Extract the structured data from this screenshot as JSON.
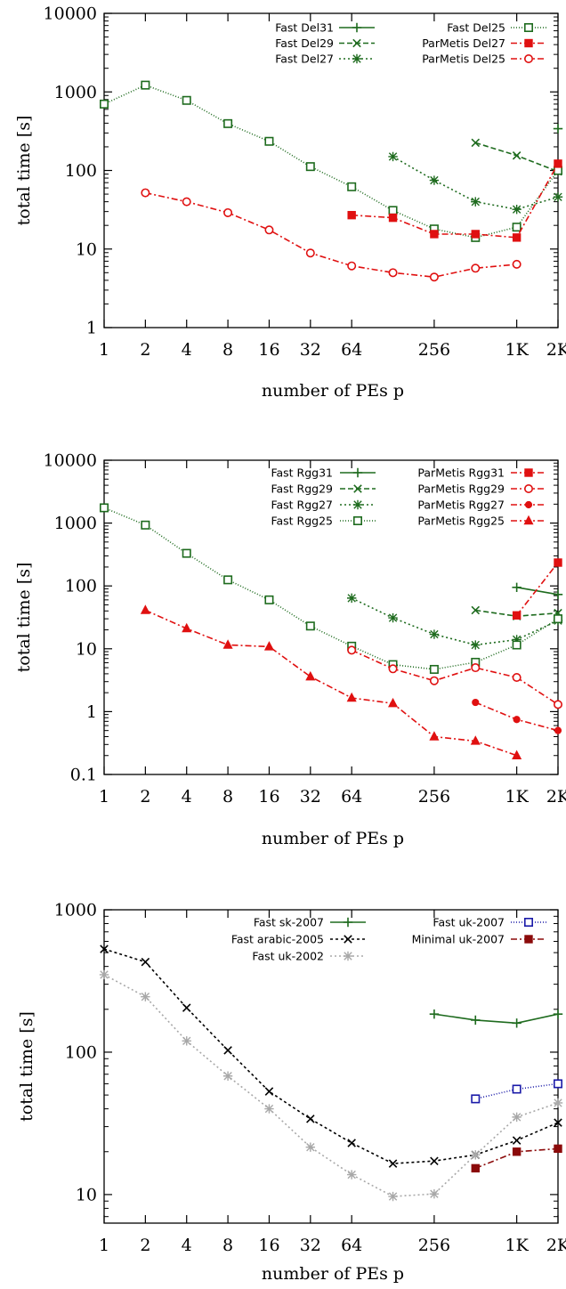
{
  "chart_data": [
    {
      "type": "line",
      "xlabel": "number of PEs p",
      "ylabel": "total time [s]",
      "x_scale": "log2",
      "y_scale": "log10",
      "xlim": [
        1,
        2048
      ],
      "ylim": [
        1,
        10000
      ],
      "x_ticks": [
        1,
        2,
        4,
        8,
        16,
        32,
        64,
        256,
        1024,
        2048
      ],
      "x_tick_labels": [
        "1",
        "2",
        "4",
        "8",
        "16",
        "32",
        "64",
        "256",
        "1K",
        "2K"
      ],
      "y_ticks": [
        1,
        10,
        100,
        1000,
        10000
      ],
      "y_tick_labels": [
        "1",
        "10",
        "100",
        "1000",
        "10000"
      ],
      "grid": false,
      "legend_position": "top-right",
      "series": [
        {
          "name": "Fast Del31",
          "color": "#1e6b1e",
          "marker": "plus",
          "dash": "",
          "x": [
            2048
          ],
          "y": [
            340
          ]
        },
        {
          "name": "Fast Del29",
          "color": "#1e6b1e",
          "marker": "x",
          "dash": "6,3",
          "x": [
            512,
            1024,
            2048
          ],
          "y": [
            225,
            155,
            97
          ]
        },
        {
          "name": "Fast Del27",
          "color": "#1e6b1e",
          "marker": "star",
          "dash": "2,3",
          "x": [
            128,
            256,
            512,
            1024,
            2048
          ],
          "y": [
            150,
            75,
            40,
            32,
            46
          ]
        },
        {
          "name": "Fast Del25",
          "color": "#1e6b1e",
          "marker": "square",
          "dash": "1,2",
          "x": [
            1,
            2,
            4,
            8,
            16,
            32,
            64,
            128,
            256,
            512,
            1024,
            2048
          ],
          "y": [
            700,
            1220,
            780,
            395,
            235,
            112,
            62,
            31,
            18,
            14,
            19,
            100
          ]
        },
        {
          "name": "ParMetis Del27",
          "color": "#e01010",
          "marker": "filled-square",
          "dash": "7,3,2,3",
          "x": [
            64,
            128,
            256,
            512,
            1024,
            2048
          ],
          "y": [
            27,
            25,
            15.5,
            15.5,
            14,
            122
          ]
        },
        {
          "name": "ParMetis Del25",
          "color": "#e01010",
          "marker": "circle",
          "dash": "7,3,2,3",
          "x": [
            2,
            4,
            8,
            16,
            32,
            64,
            128,
            256,
            512,
            1024
          ],
          "y": [
            52,
            40,
            29,
            17.5,
            8.9,
            6.1,
            5,
            4.4,
            5.7,
            6.4
          ]
        }
      ]
    },
    {
      "type": "line",
      "xlabel": "number of PEs p",
      "ylabel": "total time [s]",
      "x_scale": "log2",
      "y_scale": "log10",
      "xlim": [
        1,
        2048
      ],
      "ylim": [
        0.1,
        10000
      ],
      "x_ticks": [
        1,
        2,
        4,
        8,
        16,
        32,
        64,
        256,
        1024,
        2048
      ],
      "x_tick_labels": [
        "1",
        "2",
        "4",
        "8",
        "16",
        "32",
        "64",
        "256",
        "1K",
        "2K"
      ],
      "y_ticks": [
        0.1,
        1,
        10,
        100,
        1000,
        10000
      ],
      "y_tick_labels": [
        "0.1",
        "1",
        "10",
        "100",
        "1000",
        "10000"
      ],
      "grid": false,
      "legend_position": "top-right",
      "series": [
        {
          "name": "Fast Rgg31",
          "color": "#1e6b1e",
          "marker": "plus",
          "dash": "",
          "x": [
            1024,
            2048
          ],
          "y": [
            95,
            73
          ]
        },
        {
          "name": "Fast Rgg29",
          "color": "#1e6b1e",
          "marker": "x",
          "dash": "6,3",
          "x": [
            512,
            1024,
            2048
          ],
          "y": [
            41,
            33,
            37
          ]
        },
        {
          "name": "Fast Rgg27",
          "color": "#1e6b1e",
          "marker": "star",
          "dash": "2,3",
          "x": [
            64,
            128,
            256,
            512,
            1024,
            2048
          ],
          "y": [
            64,
            31,
            17,
            11.5,
            14,
            28
          ]
        },
        {
          "name": "Fast Rgg25",
          "color": "#1e6b1e",
          "marker": "square",
          "dash": "1,2",
          "x": [
            1,
            2,
            4,
            8,
            16,
            32,
            64,
            128,
            256,
            512,
            1024,
            2048
          ],
          "y": [
            1750,
            930,
            330,
            125,
            60,
            23,
            11,
            5.6,
            4.7,
            6.1,
            11.5,
            30
          ]
        },
        {
          "name": "ParMetis Rgg31",
          "color": "#e01010",
          "marker": "filled-square",
          "dash": "7,3,2,3",
          "x": [
            1024,
            2048
          ],
          "y": [
            34,
            235
          ]
        },
        {
          "name": "ParMetis Rgg29",
          "color": "#e01010",
          "marker": "circle",
          "dash": "7,3,2,3",
          "x": [
            64,
            128,
            256,
            512,
            1024,
            2048
          ],
          "y": [
            9.5,
            4.8,
            3.1,
            5,
            3.5,
            1.3
          ]
        },
        {
          "name": "ParMetis Rgg27",
          "color": "#e01010",
          "marker": "filled-circle",
          "dash": "7,3,2,3",
          "x": [
            512,
            1024,
            2048
          ],
          "y": [
            1.4,
            0.75,
            0.5
          ]
        },
        {
          "name": "ParMetis Rgg25",
          "color": "#e01010",
          "marker": "triangle",
          "dash": "7,3,2,3",
          "x": [
            2,
            4,
            8,
            16,
            32,
            64,
            128,
            256,
            512,
            1024
          ],
          "y": [
            41,
            21,
            11.5,
            10.8,
            3.6,
            1.65,
            1.35,
            0.4,
            0.34,
            0.2
          ]
        }
      ]
    },
    {
      "type": "line",
      "xlabel": "number of PEs p",
      "ylabel": "total time [s]",
      "x_scale": "log2",
      "y_scale": "log10",
      "xlim": [
        1,
        2048
      ],
      "ylim": [
        6.3,
        1000
      ],
      "x_ticks": [
        1,
        2,
        4,
        8,
        16,
        32,
        64,
        256,
        1024,
        2048
      ],
      "x_tick_labels": [
        "1",
        "2",
        "4",
        "8",
        "16",
        "32",
        "64",
        "256",
        "1K",
        "2K"
      ],
      "y_ticks": [
        10,
        100,
        1000
      ],
      "y_tick_labels": [
        "10",
        "100",
        "1000"
      ],
      "grid": false,
      "legend_position": "top-right",
      "series": [
        {
          "name": "Fast sk-2007",
          "color": "#1e6b1e",
          "marker": "plus",
          "dash": "",
          "x": [
            256,
            512,
            1024,
            2048
          ],
          "y": [
            185,
            168,
            160,
            185
          ]
        },
        {
          "name": "Fast arabic-2005",
          "color": "#000000",
          "marker": "x",
          "dash": "3,3",
          "x": [
            1,
            2,
            4,
            8,
            16,
            32,
            64,
            128,
            256,
            512,
            1024,
            2048
          ],
          "y": [
            530,
            430,
            205,
            103,
            53,
            34,
            23,
            16.5,
            17.2,
            19,
            24,
            32
          ]
        },
        {
          "name": "Fast uk-2002",
          "color": "#a8a8a8",
          "marker": "star",
          "dash": "2,3",
          "x": [
            1,
            2,
            4,
            8,
            16,
            32,
            64,
            128,
            256,
            512,
            1024,
            2048
          ],
          "y": [
            350,
            245,
            120,
            68,
            40,
            21.5,
            13.8,
            9.7,
            10.1,
            19,
            35,
            44
          ]
        },
        {
          "name": "Fast uk-2007",
          "color": "#1a1aa8",
          "marker": "square",
          "dash": "1,2",
          "x": [
            512,
            1024,
            2048
          ],
          "y": [
            47,
            55,
            60
          ]
        },
        {
          "name": "Minimal uk-2007",
          "color": "#8b0a0a",
          "marker": "filled-square",
          "dash": "7,3,2,3",
          "x": [
            512,
            1024,
            2048
          ],
          "y": [
            15.3,
            20,
            21
          ]
        }
      ]
    }
  ]
}
